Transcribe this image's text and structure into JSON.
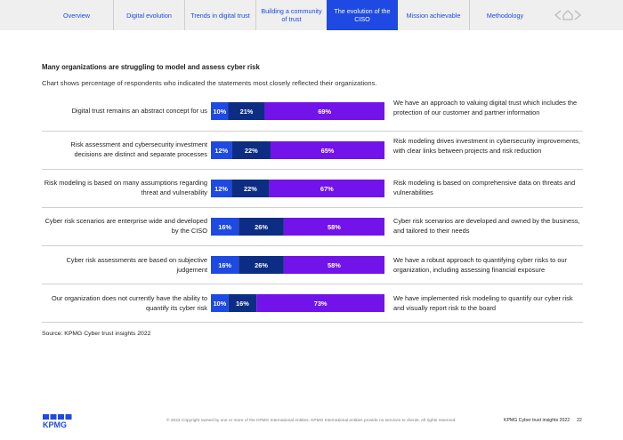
{
  "nav": {
    "tabs": [
      {
        "label": "Overview",
        "active": false
      },
      {
        "label": "Digital evolution",
        "active": false
      },
      {
        "label": "Trends in digital trust",
        "active": false
      },
      {
        "label": "Building a community of trust",
        "active": false
      },
      {
        "label": "The evolution of the CISO",
        "active": true
      },
      {
        "label": "Mission achievable",
        "active": false
      },
      {
        "label": "Methodology",
        "active": false
      }
    ],
    "arrow_icons": [
      "chevron-left-icon",
      "home-icon",
      "chevron-right-icon"
    ]
  },
  "title": "Many organizations are struggling to model and assess cyber risk",
  "subtitle": "Chart shows percentage of respondents who indicated the statements most closely reflected their organizations.",
  "chart_data": {
    "type": "stacked-bar-horizontal",
    "unit": "%",
    "series_colors": [
      "#1e49e2",
      "#0c2d83",
      "#7213ea"
    ],
    "rows": [
      {
        "left": "Digital trust remains an abstract concept for us",
        "right": "We have an approach to valuing digital trust which includes the protection of our customer and partner information",
        "values": [
          10,
          21,
          69
        ]
      },
      {
        "left": "Risk assessment and cybersecurity investment decisions are distinct and separate processes",
        "right": "Risk modeling drives investment in cybersecurity improvements, with clear links between projects and risk reduction",
        "values": [
          12,
          22,
          65
        ]
      },
      {
        "left": "Risk modeling is based on many assumptions regarding threat and vulnerability",
        "right": "Risk modeling is based on comprehensive data on threats and vulnerabilities",
        "values": [
          12,
          22,
          67
        ]
      },
      {
        "left": "Cyber risk scenarios are enterprise wide and developed by the CISO",
        "right": "Cyber risk scenarios are developed and owned by the business, and tailored to their needs",
        "values": [
          16,
          26,
          58
        ]
      },
      {
        "left": "Cyber risk assessments are based on subjective judgement",
        "right": "We have a robust approach to quantifying cyber risks to our organization, including assessing financial exposure",
        "values": [
          16,
          26,
          58
        ]
      },
      {
        "left": "Our organization does not currently have the ability to quantify its cyber risk",
        "right": "We have implemented risk modeling to quantify our cyber risk and visually report risk to the board",
        "values": [
          10,
          16,
          73
        ]
      }
    ]
  },
  "source": "Source: KPMG Cyber trust insights 2022",
  "footer": {
    "logo_text": "KPMG",
    "copyright": "© 2022 Copyright owned by one or more of the KPMG International entities. KPMG International entities provide no services to clients. All rights reserved.",
    "report_name": "KPMG Cyber trust insights 2022",
    "page_number": "22"
  }
}
